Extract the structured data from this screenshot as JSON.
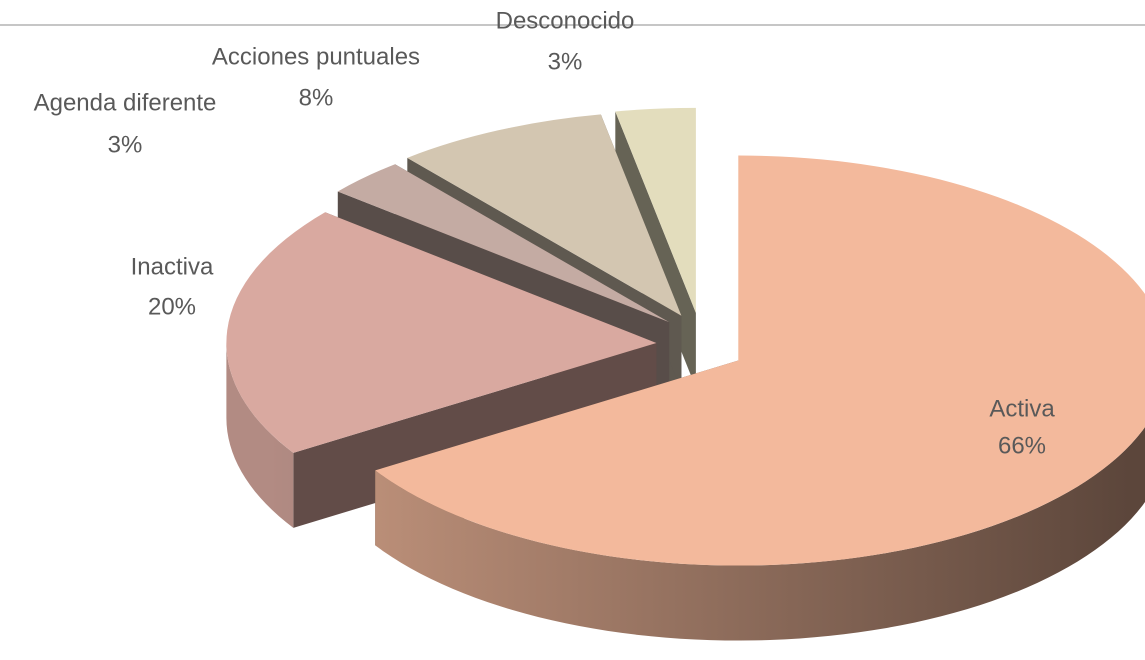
{
  "chart_data": {
    "type": "pie",
    "categories": [
      "Activa",
      "Inactiva",
      "Agenda diferente",
      "Acciones puntuales",
      "Desconocido"
    ],
    "values": [
      66,
      20,
      3,
      8,
      3
    ],
    "value_labels": [
      "66%",
      "20%",
      "3%",
      "8%",
      "3%"
    ],
    "colors": [
      "#f3b99c",
      "#d9a9a0",
      "#c4aba3",
      "#d3c6b1",
      "#e3ddbd"
    ]
  }
}
